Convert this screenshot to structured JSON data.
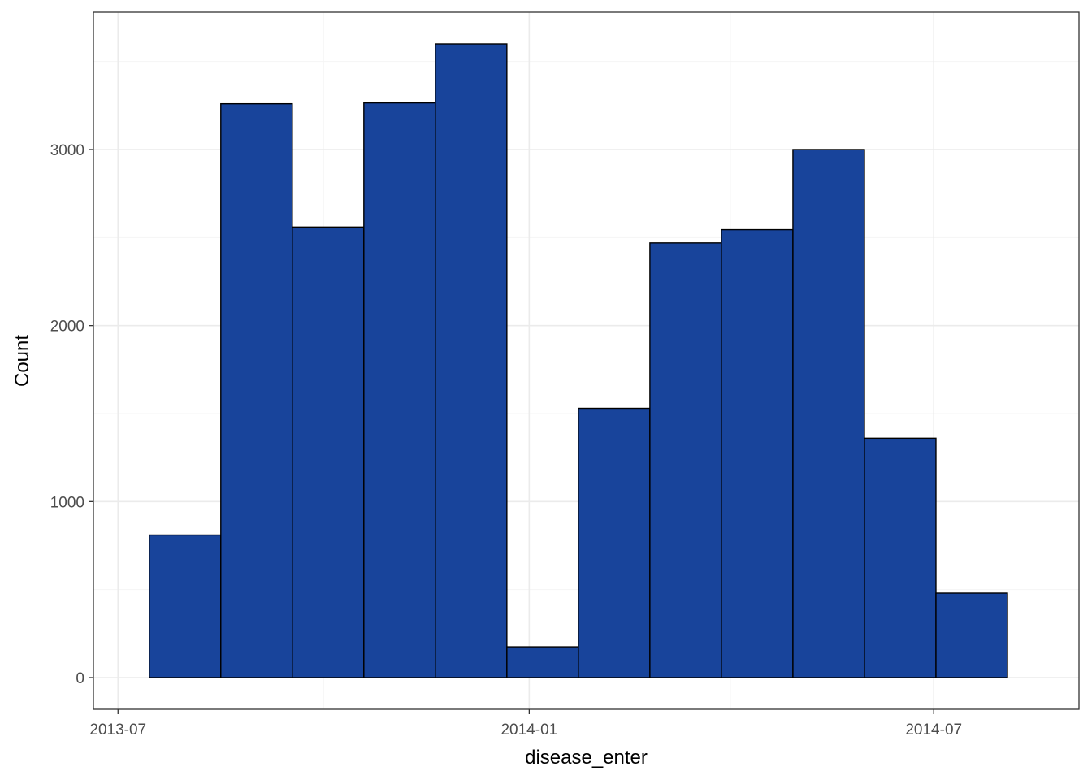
{
  "chart_data": {
    "type": "bar",
    "subtype": "histogram",
    "xlabel": "disease_enter",
    "ylabel": "Count",
    "bins": [
      {
        "start": "2013-07-15",
        "end": "2013-08-16",
        "count": 810
      },
      {
        "start": "2013-08-16",
        "end": "2013-09-17",
        "count": 3260
      },
      {
        "start": "2013-09-17",
        "end": "2013-10-19",
        "count": 2560
      },
      {
        "start": "2013-10-19",
        "end": "2013-11-20",
        "count": 3265
      },
      {
        "start": "2013-11-20",
        "end": "2013-12-22",
        "count": 3600
      },
      {
        "start": "2013-12-22",
        "end": "2014-01-23",
        "count": 175
      },
      {
        "start": "2014-01-23",
        "end": "2014-02-24",
        "count": 1530
      },
      {
        "start": "2014-02-24",
        "end": "2014-03-28",
        "count": 2470
      },
      {
        "start": "2014-03-28",
        "end": "2014-04-29",
        "count": 2545
      },
      {
        "start": "2014-04-29",
        "end": "2014-05-31",
        "count": 3000
      },
      {
        "start": "2014-05-31",
        "end": "2014-07-02",
        "count": 1360
      },
      {
        "start": "2014-07-02",
        "end": "2014-08-03",
        "count": 480
      }
    ],
    "x_ticks": [
      {
        "date": "2013-07-01",
        "label": "2013-07"
      },
      {
        "date": "2014-01-01",
        "label": "2014-01"
      },
      {
        "date": "2014-07-01",
        "label": "2014-07"
      }
    ],
    "x_minor_ticks": [
      "2013-10-01",
      "2014-04-01"
    ],
    "y_ticks": [
      0,
      1000,
      2000,
      3000
    ],
    "y_minor_ticks": [
      500,
      1500,
      2500,
      3500
    ],
    "xlim": [
      "2013-06-20",
      "2014-09-04"
    ],
    "ylim": [
      -180,
      3780
    ],
    "grid": true,
    "legend": "none",
    "colors": {
      "bar_fill": "#18449B",
      "bar_outline": "#000000",
      "grid_major": "#EBEBEB",
      "grid_minor": "#F5F5F5",
      "panel_border": "#333333",
      "tick_text": "#4D4D4D",
      "title_text": "#000000"
    }
  }
}
